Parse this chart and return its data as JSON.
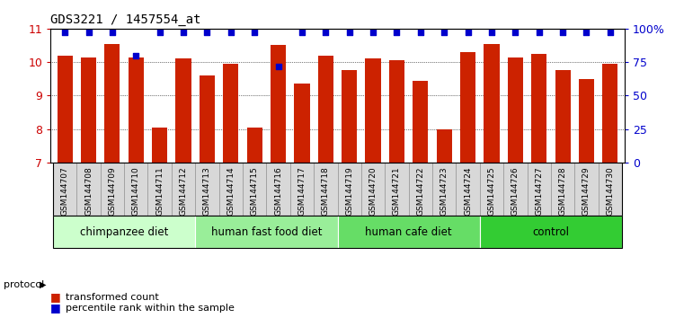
{
  "title": "GDS3221 / 1457554_at",
  "samples": [
    "GSM144707",
    "GSM144708",
    "GSM144709",
    "GSM144710",
    "GSM144711",
    "GSM144712",
    "GSM144713",
    "GSM144714",
    "GSM144715",
    "GSM144716",
    "GSM144717",
    "GSM144718",
    "GSM144719",
    "GSM144720",
    "GSM144721",
    "GSM144722",
    "GSM144723",
    "GSM144724",
    "GSM144725",
    "GSM144726",
    "GSM144727",
    "GSM144728",
    "GSM144729",
    "GSM144730"
  ],
  "bar_values": [
    10.2,
    10.15,
    10.55,
    10.15,
    8.05,
    10.1,
    9.6,
    9.95,
    8.05,
    10.5,
    9.35,
    10.2,
    9.75,
    10.1,
    10.05,
    9.45,
    8.0,
    10.3,
    10.55,
    10.15,
    10.25,
    9.75,
    9.5,
    9.95
  ],
  "percentile_values": [
    97,
    97,
    97,
    80,
    97,
    97,
    97,
    97,
    97,
    72,
    97,
    97,
    97,
    97,
    97,
    97,
    97,
    97,
    97,
    97,
    97,
    97,
    97,
    97
  ],
  "groups": [
    {
      "label": "chimpanzee diet",
      "start": 0,
      "end": 6,
      "color": "#ccffcc"
    },
    {
      "label": "human fast food diet",
      "start": 6,
      "end": 12,
      "color": "#99ee99"
    },
    {
      "label": "human cafe diet",
      "start": 12,
      "end": 18,
      "color": "#66dd66"
    },
    {
      "label": "control",
      "start": 18,
      "end": 24,
      "color": "#33cc33"
    }
  ],
  "bar_color": "#cc2200",
  "dot_color": "#0000cc",
  "ymin": 7,
  "ymax": 11,
  "yticks": [
    7,
    8,
    9,
    10,
    11
  ],
  "right_yticks": [
    0,
    25,
    50,
    75,
    100
  ],
  "right_yticklabels": [
    "0",
    "25",
    "50",
    "75",
    "100%"
  ],
  "left_tick_color": "#cc0000",
  "right_tick_color": "#0000cc"
}
